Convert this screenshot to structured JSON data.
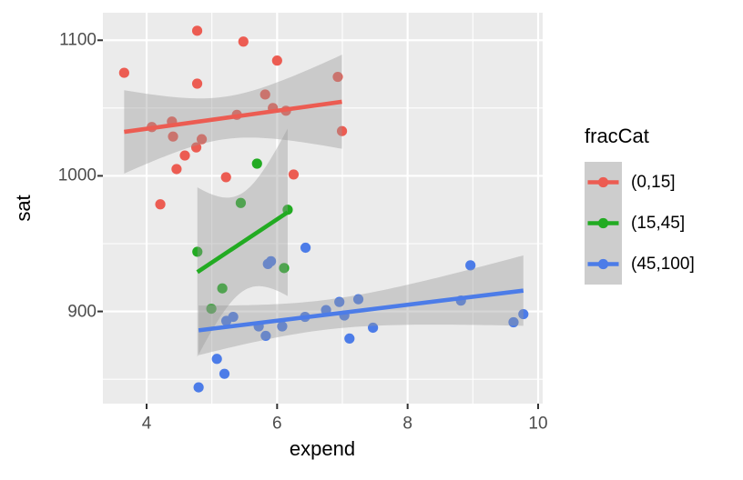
{
  "chart_data": {
    "type": "scatter",
    "title": "",
    "xlabel": "expend",
    "ylabel": "sat",
    "legend_title": "fracCat",
    "legend_position": "right",
    "grid": true,
    "xlim": [
      3.33,
      10.07
    ],
    "ylim": [
      832,
      1120.3
    ],
    "x_ticks": [
      4,
      6,
      8,
      10
    ],
    "x_minor_ticks": [
      5,
      7,
      9
    ],
    "y_ticks": [
      900,
      1000,
      1100
    ],
    "y_minor_ticks": [
      850,
      950,
      1050
    ],
    "smooth": {
      "method": "lm",
      "se_level": 0.95
    },
    "series": [
      {
        "name": "(0,15]",
        "color": "#EC5C52",
        "points": [
          [
            3.656,
            1076
          ],
          [
            4.08,
            1036
          ],
          [
            4.21,
            979
          ],
          [
            4.388,
            1040
          ],
          [
            4.405,
            1029
          ],
          [
            4.459,
            1005
          ],
          [
            4.586,
            1015
          ],
          [
            4.761,
            1021
          ],
          [
            4.775,
            1107
          ],
          [
            4.775,
            1068
          ],
          [
            4.845,
            1027
          ],
          [
            5.217,
            999
          ],
          [
            5.383,
            1045
          ],
          [
            5.483,
            1099
          ],
          [
            5.817,
            1060
          ],
          [
            5.935,
            1050
          ],
          [
            6.0,
            1085
          ],
          [
            6.136,
            1048
          ],
          [
            6.253,
            1001
          ],
          [
            6.93,
            1073
          ],
          [
            6.994,
            1033
          ]
        ]
      },
      {
        "name": "(15,45]",
        "color": "#22AB22",
        "points": [
          [
            4.778,
            944
          ],
          [
            4.992,
            902
          ],
          [
            5.16,
            917
          ],
          [
            5.443,
            980
          ],
          [
            5.692,
            1009
          ],
          [
            6.107,
            932
          ],
          [
            6.162,
            975
          ]
        ]
      },
      {
        "name": "(45,100]",
        "color": "#4C7CE8",
        "points": [
          [
            4.797,
            844
          ],
          [
            5.077,
            865
          ],
          [
            5.193,
            854
          ],
          [
            5.222,
            893
          ],
          [
            5.327,
            896
          ],
          [
            5.718,
            889
          ],
          [
            5.826,
            882
          ],
          [
            5.859,
            935
          ],
          [
            5.906,
            937
          ],
          [
            6.078,
            889
          ],
          [
            6.428,
            896
          ],
          [
            6.436,
            947
          ],
          [
            6.75,
            901
          ],
          [
            6.954,
            907
          ],
          [
            7.03,
            897
          ],
          [
            7.109,
            880
          ],
          [
            7.245,
            909
          ],
          [
            7.469,
            888
          ],
          [
            8.817,
            908
          ],
          [
            8.963,
            934
          ],
          [
            9.623,
            892
          ],
          [
            9.774,
            898
          ]
        ]
      }
    ]
  },
  "colors": {
    "panel_bg": "#EBEBEB",
    "grid": "#FFFFFF",
    "band": "#999999",
    "band_alpha": 0.4,
    "tick_mark": "#333333",
    "tick_text": "#4D4D4D",
    "axis_title_text": "#000000",
    "legend_key_bg": "#CDCDCD"
  }
}
